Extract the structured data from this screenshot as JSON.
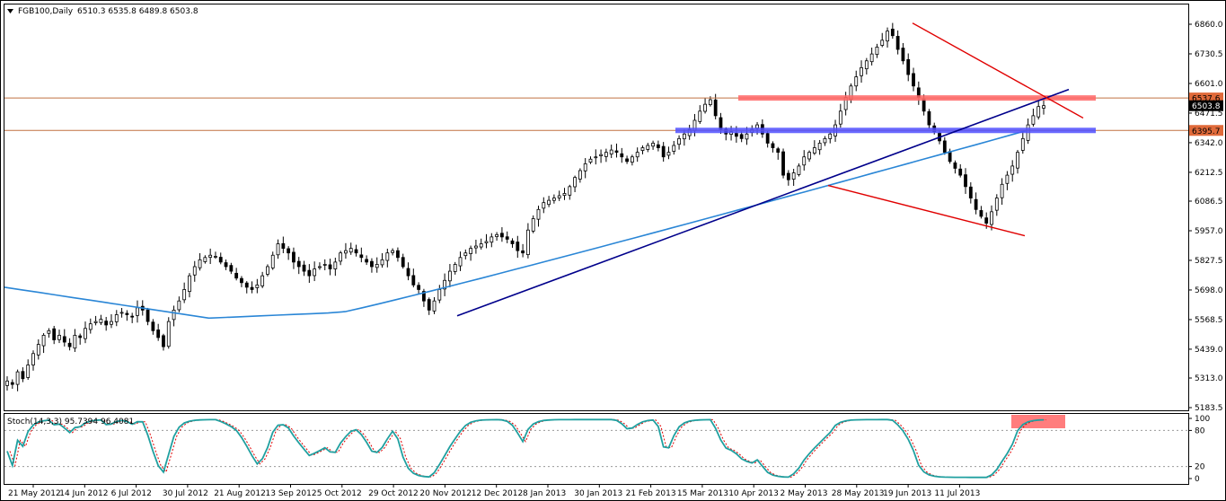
{
  "header": {
    "symbol_label": "FGB100,Daily",
    "ohlc_text": "6510.3 6535.8 6489.8 6503.8",
    "menu_icon": "triangle-down-icon"
  },
  "stoch_header": {
    "label": "Stoch(14,3,3) 95.7394 96.4081"
  },
  "price_tags": [
    {
      "value": "6537.6",
      "color": "#e06a3a",
      "text_color": "#000000"
    },
    {
      "value": "6503.8",
      "color": "#000000",
      "text_color": "#ffffff"
    },
    {
      "value": "6395.7",
      "color": "#e06a3a",
      "text_color": "#000000"
    }
  ],
  "colors": {
    "bull_candle": "#ffffff",
    "bear_candle": "#000000",
    "ma_line": "#2a86d6",
    "trend_blue": "#00008b",
    "trend_red": "#e00000",
    "zone_red": "#ff6666",
    "zone_blue": "#5050ff",
    "hline_brown": "#c07040",
    "stoch_main": "#20a0a0",
    "stoch_signal": "#e00000"
  },
  "chart_data": [
    {
      "type": "candlestick",
      "title": "FGB100,Daily",
      "last_ohlc": {
        "open": 6510.3,
        "high": 6535.8,
        "low": 6489.8,
        "close": 6503.8
      },
      "x_tick_labels": [
        "21 May 2012",
        "14 Jun 2012",
        "6 Jul 2012",
        "30 Jul 2012",
        "21 Aug 2012",
        "13 Sep 2012",
        "5 Oct 2012",
        "29 Oct 2012",
        "20 Nov 2012",
        "12 Dec 2012",
        "8 Jan 2013",
        "30 Jan 2013",
        "21 Feb 2013",
        "15 Mar 2013",
        "10 Apr 2013",
        "2 May 2013",
        "28 May 2013",
        "19 Jun 2013",
        "11 Jul 2013"
      ],
      "y_tick_labels": [
        6860.0,
        6730.5,
        6601.0,
        6471.5,
        6342.0,
        6212.5,
        6086.5,
        5957.0,
        5827.5,
        5698.0,
        5568.5,
        5439.0,
        5313.0,
        5183.5
      ],
      "ylim": [
        5170,
        6895
      ],
      "horizontal_levels": [
        6537.6,
        6395.7
      ],
      "price_path_closes": [
        5300,
        5285,
        5340,
        5310,
        5370,
        5420,
        5460,
        5500,
        5520,
        5480,
        5500,
        5470,
        5450,
        5500,
        5490,
        5530,
        5550,
        5560,
        5570,
        5545,
        5560,
        5590,
        5600,
        5590,
        5580,
        5620,
        5610,
        5560,
        5520,
        5490,
        5450,
        5560,
        5610,
        5650,
        5700,
        5760,
        5800,
        5830,
        5840,
        5850,
        5845,
        5820,
        5800,
        5780,
        5750,
        5730,
        5710,
        5700,
        5720,
        5760,
        5800,
        5850,
        5900,
        5880,
        5860,
        5820,
        5800,
        5780,
        5760,
        5790,
        5800,
        5810,
        5790,
        5820,
        5860,
        5870,
        5880,
        5860,
        5840,
        5820,
        5800,
        5810,
        5830,
        5860,
        5870,
        5840,
        5800,
        5760,
        5720,
        5700,
        5650,
        5610,
        5650,
        5700,
        5740,
        5780,
        5810,
        5840,
        5860,
        5880,
        5890,
        5900,
        5910,
        5930,
        5940,
        5930,
        5920,
        5900,
        5870,
        5860,
        5960,
        6010,
        6050,
        6080,
        6090,
        6100,
        6110,
        6120,
        6150,
        6190,
        6220,
        6250,
        6270,
        6280,
        6290,
        6300,
        6310,
        6300,
        6280,
        6260,
        6280,
        6300,
        6320,
        6330,
        6340,
        6320,
        6280,
        6300,
        6330,
        6360,
        6380,
        6400,
        6440,
        6480,
        6510,
        6530,
        6460,
        6400,
        6380,
        6390,
        6370,
        6360,
        6380,
        6400,
        6420,
        6380,
        6340,
        6320,
        6300,
        6200,
        6180,
        6210,
        6240,
        6280,
        6300,
        6320,
        6340,
        6360,
        6380,
        6420,
        6480,
        6540,
        6590,
        6630,
        6670,
        6700,
        6730,
        6760,
        6790,
        6830,
        6810,
        6750,
        6700,
        6640,
        6590,
        6540,
        6480,
        6420,
        6390,
        6350,
        6300,
        6260,
        6230,
        6200,
        6150,
        6100,
        6050,
        6020,
        5990,
        6040,
        6100,
        6160,
        6200,
        6240,
        6300,
        6360,
        6420,
        6460,
        6500,
        6504
      ],
      "moving_average_endpoints": {
        "start": 5710,
        "min": 5575,
        "end": 6395
      }
    },
    {
      "type": "line",
      "title": "Stoch(14,3,3) 95.7394 96.4081",
      "series_values": {
        "main_last": 95.7394,
        "signal_last": 96.4081
      },
      "y_tick_labels": [
        100,
        80,
        20,
        0
      ],
      "ylim": [
        0,
        100
      ],
      "levels": [
        80,
        20
      ]
    }
  ]
}
